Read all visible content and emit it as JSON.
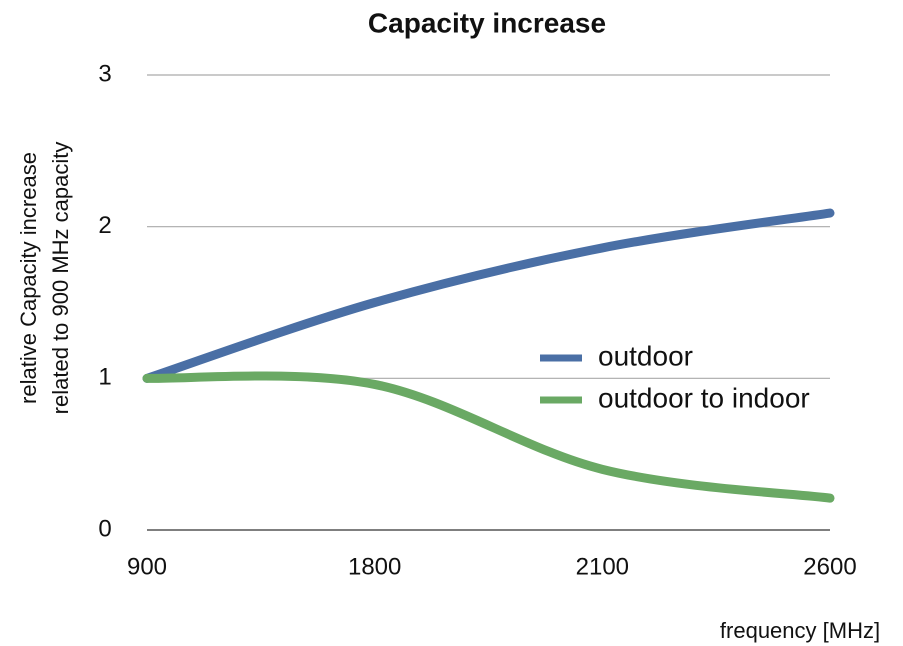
{
  "chart_data": {
    "type": "line",
    "title": "Capacity increase",
    "y_label": [
      "relative Capacity increase",
      "related to 900 MHz capacity"
    ],
    "x_label": "frequency [MHz]",
    "categories": [
      "900",
      "1800",
      "2100",
      "2600"
    ],
    "series": [
      {
        "name": "outdoor",
        "color": "#4a6fa5",
        "values": [
          1,
          1.5,
          1.86,
          2.09
        ]
      },
      {
        "name": "outdoor to indoor",
        "color": "#6aa964",
        "values": [
          1,
          0.96,
          0.4,
          0.21
        ]
      }
    ],
    "ylim": [
      0,
      3
    ],
    "yticks": [
      0,
      1,
      2,
      3
    ],
    "grid": true,
    "smooth": true,
    "legend": "right"
  }
}
